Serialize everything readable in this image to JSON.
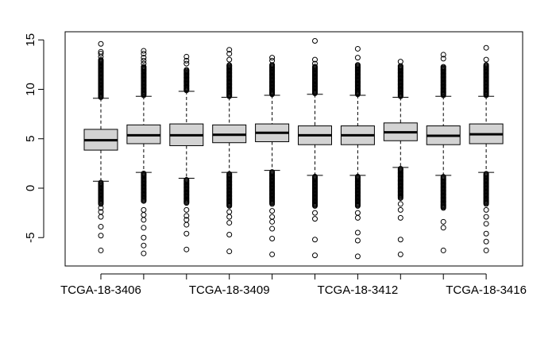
{
  "chart_data": {
    "type": "boxplot",
    "title": "",
    "xlabel": "",
    "ylabel": "",
    "ylim": [
      -8,
      15.8
    ],
    "yticks": [
      -5,
      0,
      5,
      10,
      15
    ],
    "x_tick_labels_shown": [
      "TCGA-18-3406",
      "TCGA-18-3409",
      "TCGA-18-3412",
      "TCGA-18-3416"
    ],
    "x_tick_label_positions": [
      1,
      4,
      7,
      10
    ],
    "grid": false,
    "legend": "none",
    "colors": {
      "box_fill": "#d3d3d3",
      "stroke": "#000000"
    },
    "boxes": [
      {
        "label": "TCGA-18-3406",
        "whisker_low": 0.7,
        "q1": 3.85,
        "median": 4.85,
        "q3": 5.95,
        "whisker_high": 9.1,
        "outlier_hi_dense_to": 13.0,
        "outlier_lo_dense_to": -1.6,
        "outliers": [
          14.6,
          13.8,
          13.6,
          13.3,
          -2.0,
          -2.4,
          -2.9,
          -3.9,
          -4.8,
          -6.3
        ]
      },
      {
        "label": "",
        "whisker_low": 1.6,
        "q1": 4.5,
        "median": 5.35,
        "q3": 6.4,
        "whisker_high": 9.3,
        "outlier_hi_dense_to": 12.3,
        "outlier_lo_dense_to": -1.3,
        "outliers": [
          13.9,
          13.6,
          13.2,
          12.9,
          12.6,
          -2.2,
          -2.7,
          -3.2,
          -4.0,
          -5.0,
          -5.8,
          -6.6
        ]
      },
      {
        "label": "",
        "whisker_low": 1.0,
        "q1": 4.3,
        "median": 5.35,
        "q3": 6.5,
        "whisker_high": 9.8,
        "outlier_hi_dense_to": 12.0,
        "outlier_lo_dense_to": -1.5,
        "outliers": [
          13.3,
          12.9,
          12.6,
          -2.2,
          -2.8,
          -3.2,
          -3.7,
          -4.6,
          -6.2
        ]
      },
      {
        "label": "TCGA-18-3409",
        "whisker_low": 1.6,
        "q1": 4.6,
        "median": 5.4,
        "q3": 6.4,
        "whisker_high": 9.2,
        "outlier_hi_dense_to": 12.5,
        "outlier_lo_dense_to": -1.8,
        "outliers": [
          14.0,
          13.6,
          13.0,
          -2.4,
          -2.9,
          -3.5,
          -4.7,
          -6.4
        ]
      },
      {
        "label": "",
        "whisker_low": 1.8,
        "q1": 4.7,
        "median": 5.6,
        "q3": 6.5,
        "whisker_high": 9.4,
        "outlier_hi_dense_to": 12.5,
        "outlier_lo_dense_to": -1.6,
        "outliers": [
          13.2,
          12.9,
          -2.3,
          -2.9,
          -3.4,
          -4.1,
          -5.1,
          -6.7
        ]
      },
      {
        "label": "",
        "whisker_low": 1.3,
        "q1": 4.4,
        "median": 5.35,
        "q3": 6.3,
        "whisker_high": 9.5,
        "outlier_hi_dense_to": 12.3,
        "outlier_lo_dense_to": -1.8,
        "outliers": [
          14.9,
          13.0,
          12.6,
          -2.5,
          -3.1,
          -5.2,
          -6.8
        ]
      },
      {
        "label": "TCGA-18-3412",
        "whisker_low": 1.3,
        "q1": 4.4,
        "median": 5.35,
        "q3": 6.3,
        "whisker_high": 9.4,
        "outlier_hi_dense_to": 12.5,
        "outlier_lo_dense_to": -1.8,
        "outliers": [
          14.1,
          13.2,
          -2.5,
          -3.0,
          -4.5,
          -5.3,
          -6.9
        ]
      },
      {
        "label": "",
        "whisker_low": 2.1,
        "q1": 4.8,
        "median": 5.65,
        "q3": 6.6,
        "whisker_high": 9.2,
        "outlier_hi_dense_to": 12.4,
        "outlier_lo_dense_to": -1.0,
        "outliers": [
          12.8,
          -1.6,
          -2.2,
          -3.0,
          -5.2,
          -6.7
        ]
      },
      {
        "label": "",
        "whisker_low": 1.3,
        "q1": 4.4,
        "median": 5.3,
        "q3": 6.3,
        "whisker_high": 9.3,
        "outlier_hi_dense_to": 12.3,
        "outlier_lo_dense_to": -2.0,
        "outliers": [
          13.5,
          13.1,
          -3.4,
          -4.0,
          -6.3
        ]
      },
      {
        "label": "TCGA-18-3416",
        "whisker_low": 1.6,
        "q1": 4.5,
        "median": 5.45,
        "q3": 6.5,
        "whisker_high": 9.3,
        "outlier_hi_dense_to": 12.5,
        "outlier_lo_dense_to": -1.6,
        "outliers": [
          14.2,
          13.0,
          -2.2,
          -2.9,
          -3.6,
          -4.6,
          -5.4,
          -6.3
        ]
      }
    ]
  }
}
